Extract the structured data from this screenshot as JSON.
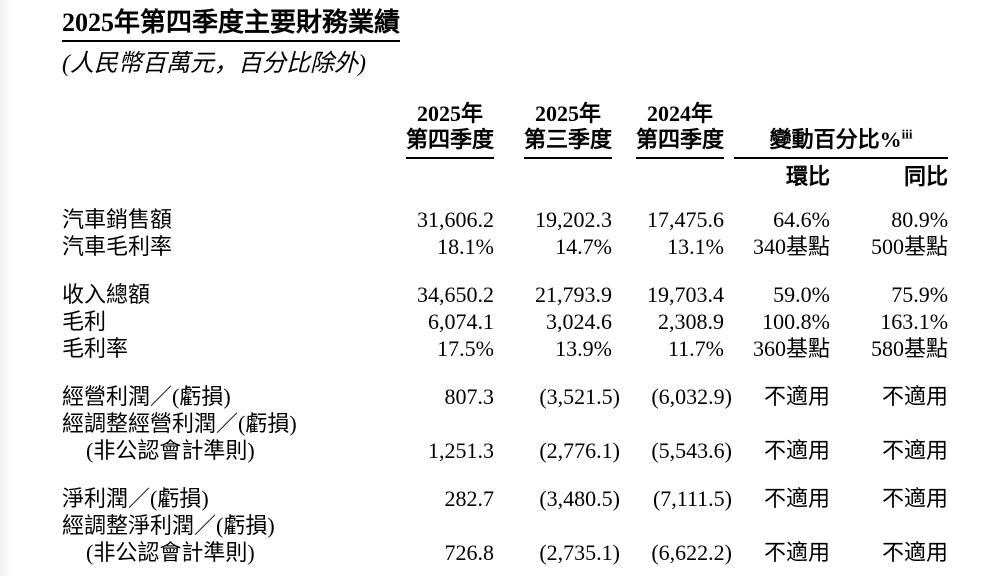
{
  "page": {
    "title": "2025年第四季度主要財務業績",
    "subtitle": "(人民幣百萬元，百分比除外)"
  },
  "table": {
    "quarter_headers": [
      {
        "line1": "2025年",
        "line2": "第四季度"
      },
      {
        "line1": "2025年",
        "line2": "第三季度"
      },
      {
        "line1": "2024年",
        "line2": "第四季度"
      }
    ],
    "change_header": {
      "label": "變動百分比%",
      "superscript": "iii",
      "sub_columns": [
        "環比",
        "同比"
      ]
    },
    "groups": [
      {
        "rows": [
          {
            "label": "汽車銷售額",
            "indent": false,
            "values": [
              "31,606.2",
              "19,202.3",
              "17,475.6",
              "64.6%",
              "80.9%"
            ]
          },
          {
            "label": "汽車毛利率",
            "indent": false,
            "values": [
              "18.1%",
              "14.7%",
              "13.1%",
              "340基點",
              "500基點"
            ]
          }
        ]
      },
      {
        "rows": [
          {
            "label": "收入總額",
            "indent": false,
            "values": [
              "34,650.2",
              "21,793.9",
              "19,703.4",
              "59.0%",
              "75.9%"
            ]
          },
          {
            "label": "毛利",
            "indent": false,
            "values": [
              "6,074.1",
              "3,024.6",
              "2,308.9",
              "100.8%",
              "163.1%"
            ]
          },
          {
            "label": "毛利率",
            "indent": false,
            "values": [
              "17.5%",
              "13.9%",
              "11.7%",
              "360基點",
              "580基點"
            ]
          }
        ]
      },
      {
        "rows": [
          {
            "label": "經營利潤／(虧損)",
            "indent": false,
            "values": [
              "807.3",
              "(3,521.5)",
              "(6,032.9)",
              "不適用",
              "不適用"
            ]
          },
          {
            "label": "經調整經營利潤／(虧損)",
            "indent": false,
            "values": [
              "",
              "",
              "",
              "",
              ""
            ]
          },
          {
            "label": "(非公認會計準則)",
            "indent": true,
            "values": [
              "1,251.3",
              "(2,776.1)",
              "(5,543.6)",
              "不適用",
              "不適用"
            ]
          }
        ]
      },
      {
        "rows": [
          {
            "label": "淨利潤／(虧損)",
            "indent": false,
            "values": [
              "282.7",
              "(3,480.5)",
              "(7,111.5)",
              "不適用",
              "不適用"
            ]
          },
          {
            "label": "經調整淨利潤／(虧損)",
            "indent": false,
            "values": [
              "",
              "",
              "",
              "",
              ""
            ]
          },
          {
            "label": "(非公認會計準則)",
            "indent": true,
            "values": [
              "726.8",
              "(2,735.1)",
              "(6,622.2)",
              "不適用",
              "不適用"
            ]
          }
        ]
      }
    ]
  },
  "colors": {
    "text": "#000000",
    "background": "#ffffff"
  }
}
